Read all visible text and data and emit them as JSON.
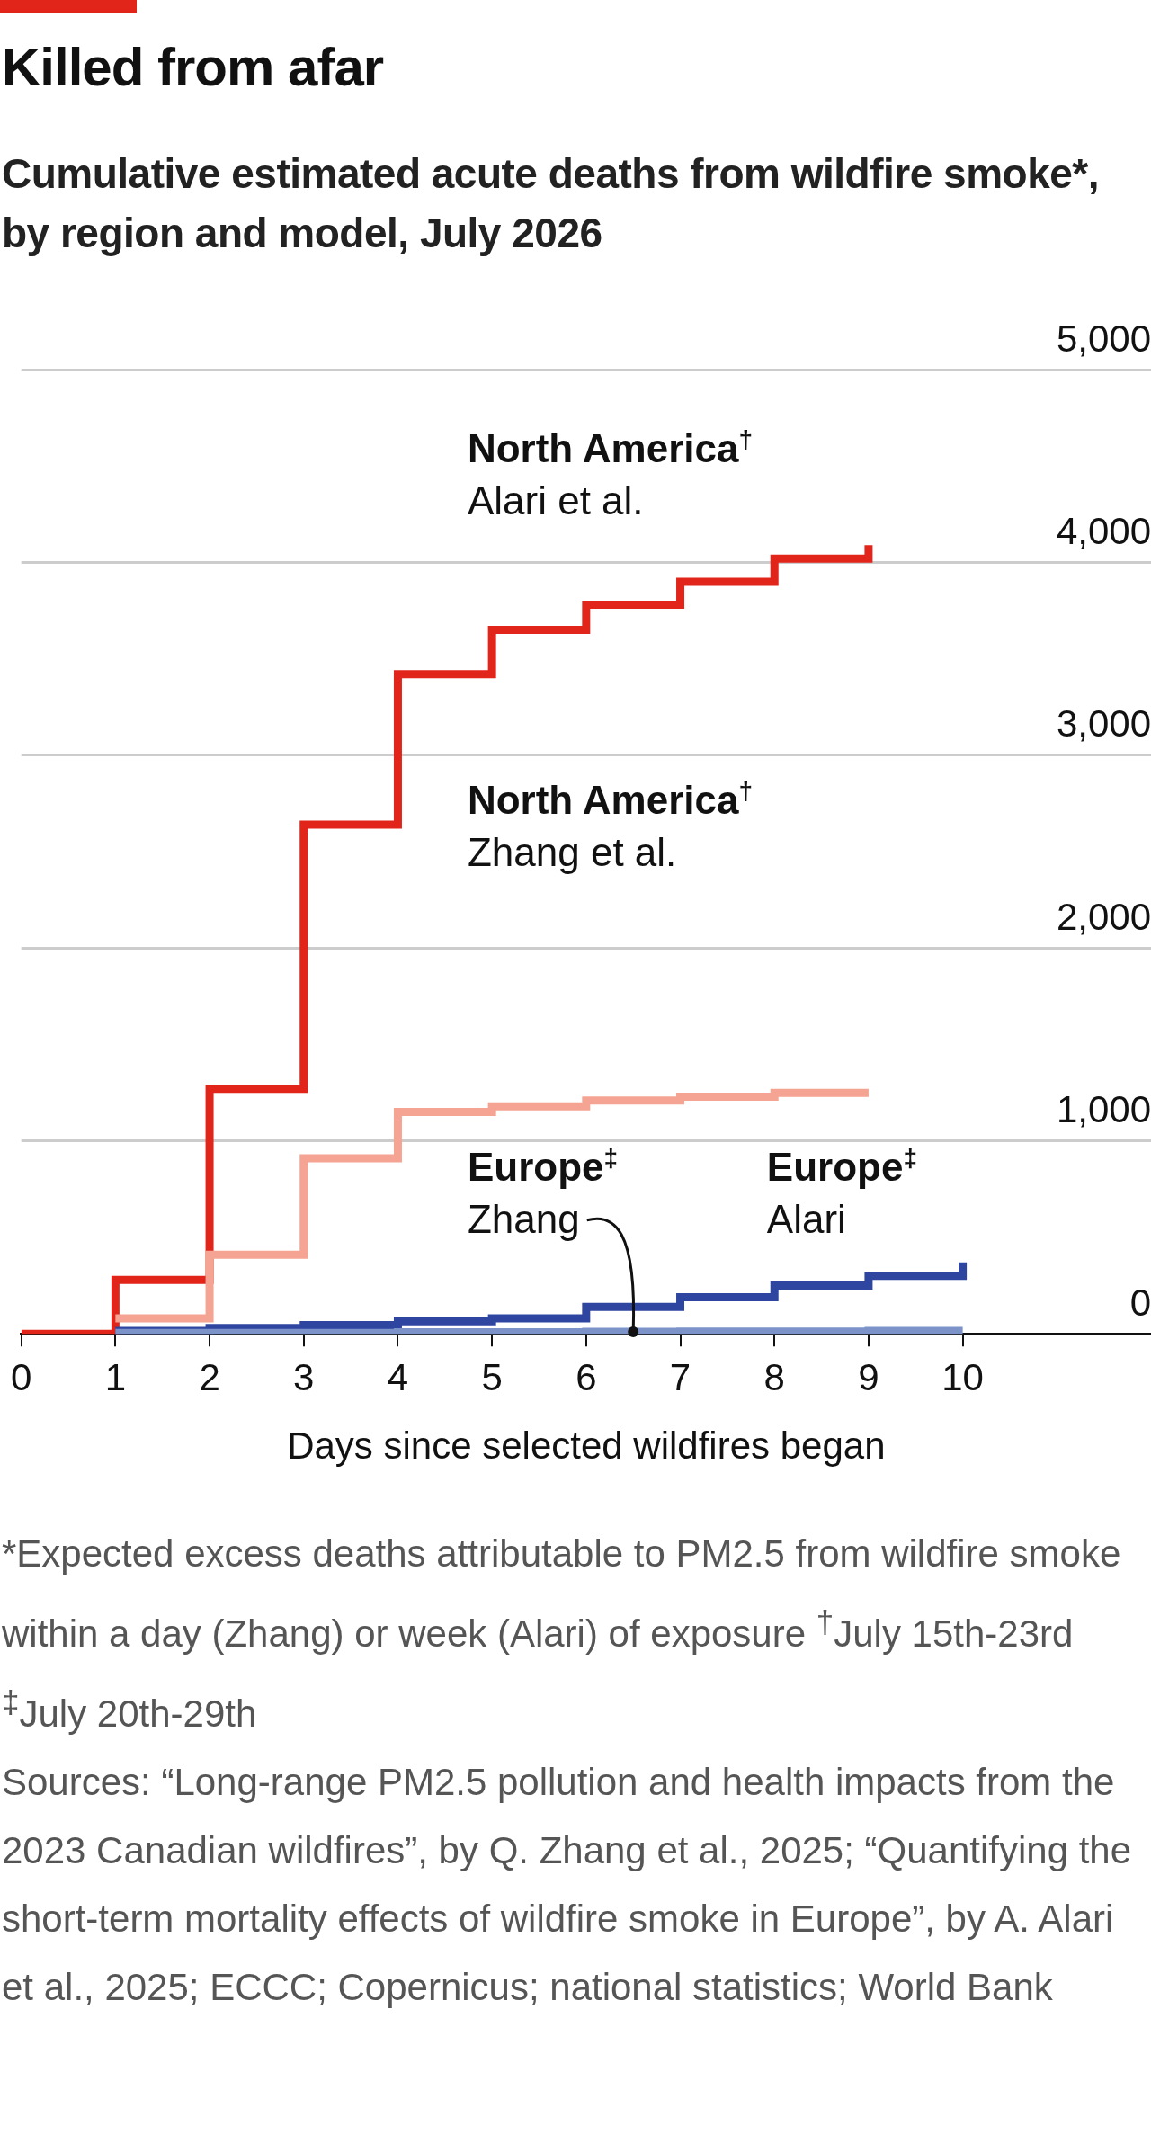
{
  "chart_data": {
    "type": "step",
    "title": "Killed from afar",
    "subtitle": "Cumulative estimated acute deaths from wildfire smoke*, by region and model, July 2026",
    "xlabel": "Days since selected wildfires began",
    "xlim": [
      0,
      12
    ],
    "xticks": [
      0,
      1,
      2,
      3,
      4,
      5,
      6,
      7,
      8,
      9,
      10
    ],
    "ylim": [
      0,
      5000
    ],
    "yticks": [
      {
        "value": 0,
        "label": "0"
      },
      {
        "value": 1000,
        "label": "1,000"
      },
      {
        "value": 2000,
        "label": "2,000"
      },
      {
        "value": 3000,
        "label": "3,000"
      },
      {
        "value": 4000,
        "label": "4,000"
      },
      {
        "value": 5000,
        "label": "5,000"
      }
    ],
    "grid": "y",
    "series": [
      {
        "name": "Europe$^{‡}$ Zhang",
        "color": "#7b93c9",
        "x": [
          1,
          2,
          3,
          4,
          5,
          6,
          7,
          8,
          9,
          10
        ],
        "values": [
          5,
          5,
          5,
          8,
          8,
          10,
          12,
          12,
          15,
          15
        ]
      },
      {
        "name": "Europe$^{‡}$ Alari",
        "color": "#2f46a0",
        "x": [
          1,
          2,
          3,
          4,
          5,
          6,
          7,
          8,
          9,
          10
        ],
        "values": [
          15,
          30,
          45,
          65,
          80,
          140,
          190,
          250,
          300,
          370
        ]
      },
      {
        "name": "North America$^{†}$ Zhang et al.",
        "color": "#f5a493",
        "x": [
          1,
          2,
          3,
          4,
          5,
          6,
          7,
          8,
          9
        ],
        "values": [
          80,
          410,
          910,
          1150,
          1180,
          1210,
          1230,
          1250,
          1250
        ]
      },
      {
        "name": "North America$^{†}$ Alari et al.",
        "color": "#e1251b",
        "x": [
          0,
          1,
          2,
          3,
          4,
          5,
          6,
          7,
          8,
          9
        ],
        "values": [
          0,
          280,
          1270,
          2640,
          3420,
          3650,
          3780,
          3900,
          4020,
          4090
        ]
      }
    ],
    "annotations": [
      "*Expected excess deaths attributable to PM2.5 from wildfire smoke within a day (Zhang) or week (Alari) of exposure   $^{†}$July 15th-23rd   $^{‡}$July 20th-29th",
      "Sources: “Long-range PM2.5 pollution and health impacts from the 2023 Canadian wildfires”, by Q. Zhang et al., 2025; “Quantifying the short-term mortality effects of wildfire smoke in Europe”, by A. Alari et al., 2025; ECCC; Copernicus; national statistics; World Bank"
    ]
  }
}
